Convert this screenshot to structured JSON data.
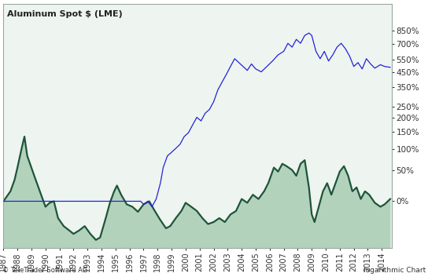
{
  "chart_data": {
    "type": "line",
    "title": "Aluminum Spot $ (LME)",
    "annotations": [
      "© TeleTrader Software AG",
      "logarithmic Chart"
    ],
    "log": "y",
    "grid": false,
    "xlim": [
      1987,
      2014.7
    ],
    "xticks": [
      1987,
      1988,
      1989,
      1990,
      1991,
      1992,
      1993,
      1994,
      1995,
      1996,
      1997,
      1998,
      1999,
      2000,
      2001,
      2002,
      2003,
      2004,
      2005,
      2006,
      2007,
      2008,
      2009,
      2010,
      2011,
      2012,
      2013,
      2014
    ],
    "ylim": [
      -46,
      1250
    ],
    "yticks": [
      {
        "value": 0,
        "label": "0%"
      },
      {
        "value": 50,
        "label": "50%"
      },
      {
        "value": 100,
        "label": "100%"
      },
      {
        "value": 150,
        "label": "150%"
      },
      {
        "value": 200,
        "label": "200%"
      },
      {
        "value": 250,
        "label": "250%"
      },
      {
        "value": 350,
        "label": "350%"
      },
      {
        "value": 450,
        "label": "450%"
      },
      {
        "value": 550,
        "label": "550%"
      },
      {
        "value": 700,
        "label": "700%"
      },
      {
        "value": 850,
        "label": "850%"
      }
    ],
    "series": [
      {
        "type": "area",
        "color": "#1d5538",
        "x": [
          1987.0,
          1987.5,
          1987.8,
          1988.0,
          1988.3,
          1988.5,
          1988.7,
          1988.9,
          1989.2,
          1989.5,
          1989.8,
          1990.0,
          1990.3,
          1990.6,
          1990.9,
          1991.3,
          1991.7,
          1992.0,
          1992.4,
          1992.8,
          1993.2,
          1993.6,
          1993.9,
          1994.3,
          1994.6,
          1994.9,
          1995.1,
          1995.4,
          1995.8,
          1996.2,
          1996.6,
          1997.0,
          1997.4,
          1997.8,
          1998.2,
          1998.6,
          1998.9,
          1999.3,
          1999.7,
          2000.0,
          2000.4,
          2000.8,
          2001.2,
          2001.6,
          2002.0,
          2002.4,
          2002.8,
          2003.2,
          2003.6,
          2004.0,
          2004.4,
          2004.8,
          2005.2,
          2005.6,
          2005.9,
          2006.3,
          2006.6,
          2006.9,
          2007.2,
          2007.6,
          2007.9,
          2008.2,
          2008.5,
          2008.8,
          2009.0,
          2009.2,
          2009.5,
          2009.8,
          2010.1,
          2010.4,
          2010.7,
          2011.0,
          2011.3,
          2011.6,
          2011.9,
          2012.2,
          2012.5,
          2012.8,
          2013.1,
          2013.5,
          2013.9,
          2014.2,
          2014.6
        ],
        "values": [
          0,
          14,
          33,
          56,
          101,
          135,
          82,
          64,
          40,
          20,
          3,
          -7,
          -2,
          0,
          -20,
          -28,
          -32,
          -35,
          -32,
          -28,
          -35,
          -40,
          -38,
          -20,
          -2,
          14,
          23,
          9,
          -4,
          -7,
          -13,
          -4,
          0,
          -12,
          -22,
          -30,
          -28,
          -20,
          -12,
          -2,
          -7,
          -12,
          -20,
          -26,
          -24,
          -20,
          -24,
          -16,
          -12,
          3,
          -2,
          9,
          3,
          14,
          27,
          56,
          48,
          64,
          59,
          51,
          40,
          64,
          72,
          20,
          -16,
          -24,
          -7,
          14,
          27,
          9,
          27,
          48,
          59,
          40,
          14,
          20,
          3,
          14,
          9,
          -2,
          -7,
          -4,
          3
        ]
      },
      {
        "type": "line",
        "color": "#2323d8",
        "x": [
          1987.0,
          1996.8,
          1997.0,
          1997.3,
          1997.6,
          1997.9,
          1998.2,
          1998.4,
          1998.7,
          1999.0,
          1999.3,
          1999.6,
          1999.9,
          2000.2,
          2000.5,
          2000.8,
          2001.1,
          2001.4,
          2001.7,
          2002.0,
          2002.3,
          2002.6,
          2002.9,
          2003.2,
          2003.5,
          2003.8,
          2004.1,
          2004.4,
          2004.7,
          2005.0,
          2005.4,
          2005.8,
          2006.2,
          2006.6,
          2007.0,
          2007.3,
          2007.6,
          2007.9,
          2008.2,
          2008.5,
          2008.8,
          2009.0,
          2009.3,
          2009.6,
          2009.9,
          2010.2,
          2010.5,
          2010.8,
          2011.1,
          2011.4,
          2011.7,
          2012.0,
          2012.3,
          2012.6,
          2012.9,
          2013.2,
          2013.5,
          2013.9,
          2014.2,
          2014.6
        ],
        "values": [
          0,
          0,
          -4,
          0,
          -7,
          3,
          27,
          56,
          82,
          91,
          101,
          112,
          135,
          147,
          174,
          203,
          189,
          220,
          236,
          272,
          335,
          382,
          433,
          493,
          557,
          524,
          493,
          463,
          513,
          474,
          452,
          493,
          537,
          591,
          624,
          705,
          665,
          748,
          705,
          793,
          822,
          793,
          624,
          557,
          624,
          537,
          591,
          665,
          705,
          650,
          580,
          493,
          524,
          474,
          557,
          513,
          480,
          507,
          493,
          486
        ]
      }
    ]
  }
}
